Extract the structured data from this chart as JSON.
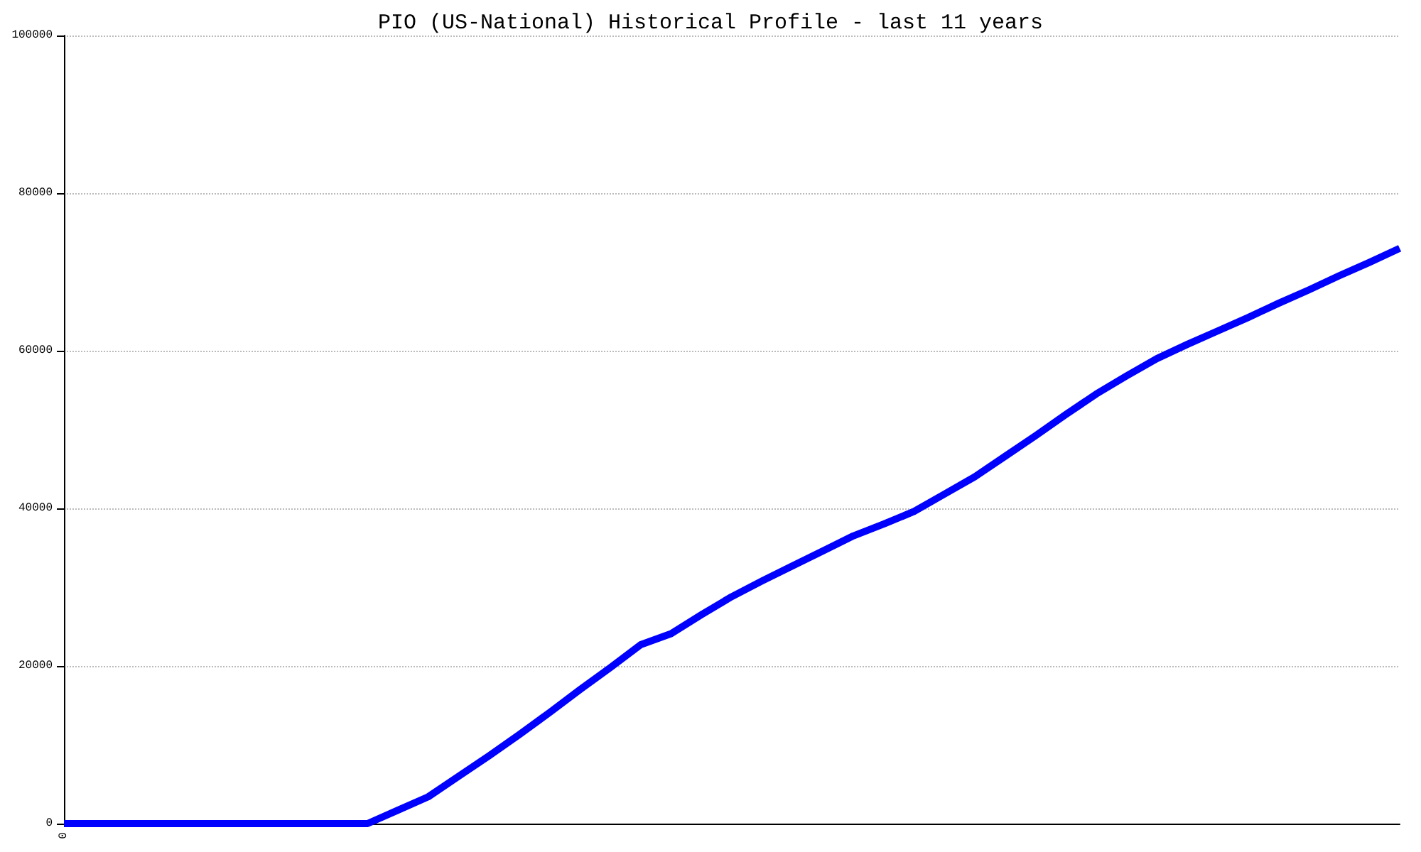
{
  "chart_data": {
    "type": "line",
    "title": "PIO (US-National) Historical Profile - last 11 years",
    "categories": [
      "0",
      null,
      null,
      null,
      null,
      null,
      null,
      null,
      null,
      null,
      null,
      null,
      null,
      null,
      null,
      null,
      null,
      null,
      null,
      null,
      null,
      null,
      null,
      null,
      null,
      null,
      null,
      null,
      null,
      null,
      null,
      null,
      null,
      null,
      null,
      null,
      null,
      null,
      null,
      null,
      null,
      null,
      null,
      null,
      null
    ],
    "series": [
      {
        "color": "#0000ff",
        "values": [
          0,
          0,
          0,
          0,
          0,
          0,
          0,
          0,
          0,
          0,
          0,
          1700,
          3400,
          6000,
          8600,
          11300,
          14100,
          17000,
          19800,
          22700,
          24100,
          26500,
          28800,
          30800,
          32700,
          34600,
          36500,
          38000,
          39600,
          41800,
          44000,
          46600,
          49200,
          51900,
          54500,
          56800,
          59000,
          60800,
          62500,
          64200,
          66000,
          67700,
          69500,
          71200,
          73000
        ]
      }
    ],
    "ylim": [
      0,
      100000
    ],
    "yticks": [
      0,
      20000,
      40000,
      60000,
      80000,
      100000
    ],
    "grid": "y",
    "marker": "none",
    "line_style": "solid"
  }
}
